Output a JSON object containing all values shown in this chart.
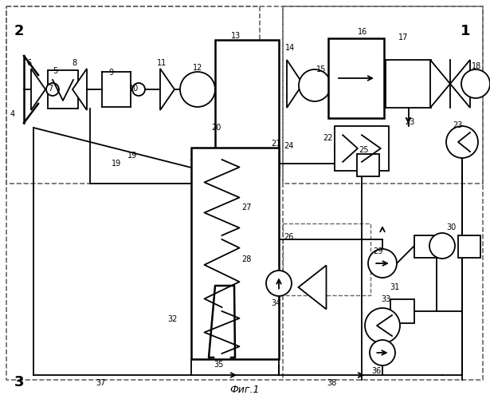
{
  "title": "Фиг.1",
  "bg_color": "#ffffff",
  "line_color": "#000000",
  "dash_color": "#666666"
}
